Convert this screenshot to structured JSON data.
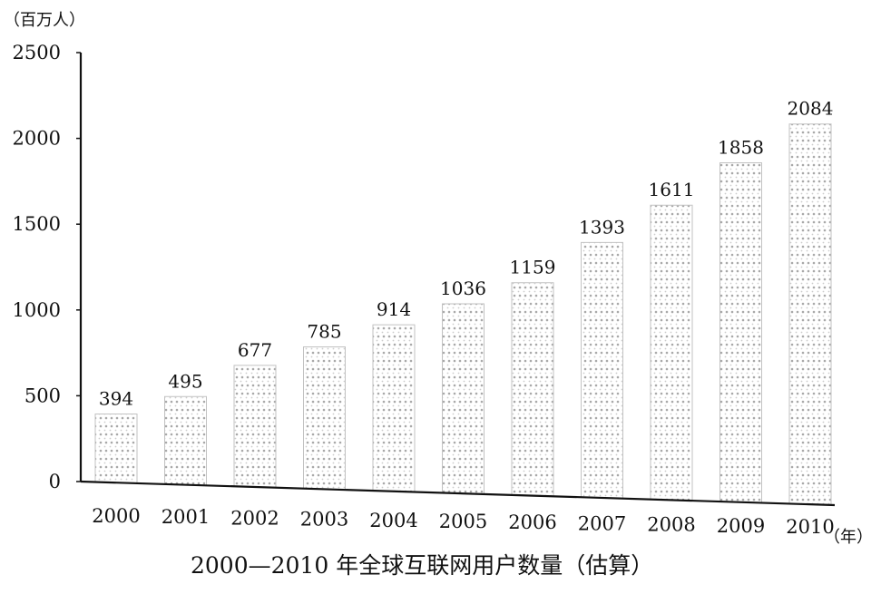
{
  "chart_data": {
    "type": "bar",
    "title": "2000—2010 年全球互联网用户数量（估算）",
    "ylabel": "（百万人）",
    "xlabel": "（年）",
    "categories": [
      "2000",
      "2001",
      "2002",
      "2003",
      "2004",
      "2005",
      "2006",
      "2007",
      "2008",
      "2009",
      "2010"
    ],
    "values": [
      394,
      495,
      677,
      785,
      914,
      1036,
      1159,
      1393,
      1611,
      1858,
      2084
    ],
    "value_labels": [
      "394",
      "495",
      "677",
      "785",
      "914",
      "1036",
      "1159",
      "1393",
      "1611",
      "1858",
      "2084"
    ],
    "ylim": [
      0,
      2500
    ],
    "yticks": [
      0,
      500,
      1000,
      1500,
      2000,
      2500
    ],
    "ytick_labels": [
      "0",
      "500",
      "1000",
      "1500",
      "2000",
      "2500"
    ],
    "grid": false,
    "legend": "none",
    "bar_color": "#b8b8b8"
  }
}
